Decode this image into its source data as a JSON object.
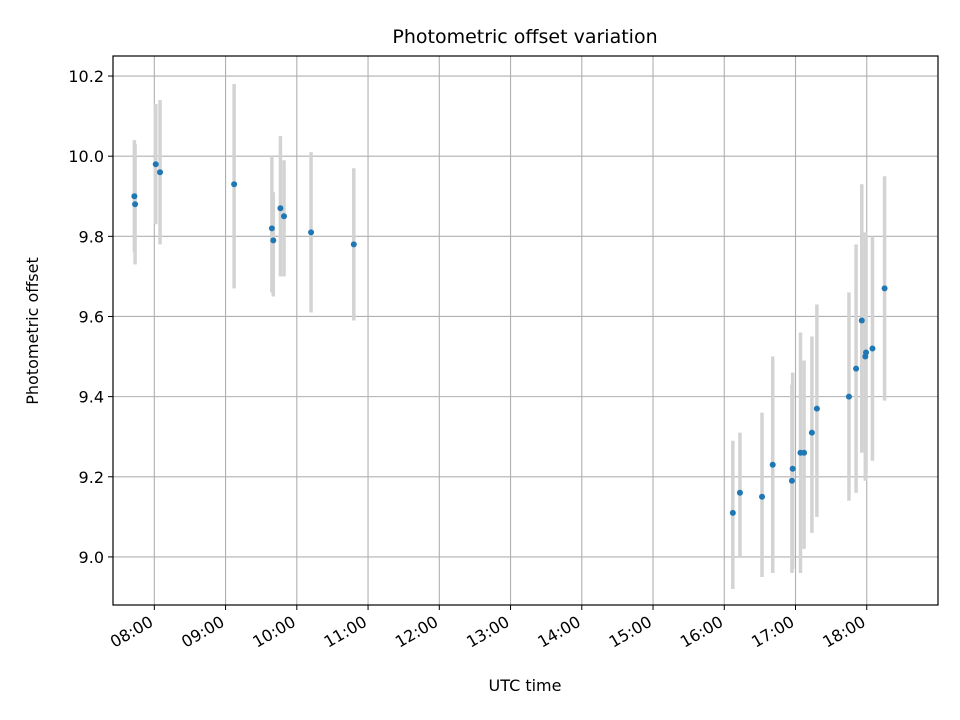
{
  "chart_data": {
    "type": "scatter",
    "title": "Photometric offset variation",
    "xlabel": "UTC time",
    "ylabel": "Photometric offset",
    "x_unit": "hours UTC",
    "xlim": [
      7.42,
      19.0
    ],
    "ylim": [
      8.88,
      10.25
    ],
    "x_ticks": [
      8,
      9,
      10,
      11,
      12,
      13,
      14,
      15,
      16,
      17,
      18
    ],
    "x_tick_labels": [
      "08:00",
      "09:00",
      "10:00",
      "11:00",
      "12:00",
      "13:00",
      "14:00",
      "15:00",
      "16:00",
      "17:00",
      "18:00"
    ],
    "y_ticks": [
      9.0,
      9.2,
      9.4,
      9.6,
      9.8,
      10.0,
      10.2
    ],
    "y_tick_labels": [
      "9.0",
      "9.2",
      "9.4",
      "9.6",
      "9.8",
      "10.0",
      "10.2"
    ],
    "grid": true,
    "marker_color": "#1f77b4",
    "errorbar_color": "#d3d3d3",
    "series": [
      {
        "points": [
          {
            "x": 7.72,
            "y": 9.9,
            "lo": 9.76,
            "hi": 10.04
          },
          {
            "x": 7.73,
            "y": 9.88,
            "lo": 9.73,
            "hi": 10.03
          },
          {
            "x": 8.02,
            "y": 9.98,
            "lo": 9.83,
            "hi": 10.13
          },
          {
            "x": 8.08,
            "y": 9.96,
            "lo": 9.78,
            "hi": 10.14
          },
          {
            "x": 9.12,
            "y": 9.93,
            "lo": 9.67,
            "hi": 10.18
          },
          {
            "x": 9.65,
            "y": 9.82,
            "lo": 9.66,
            "hi": 10.0
          },
          {
            "x": 9.67,
            "y": 9.79,
            "lo": 9.65,
            "hi": 9.91
          },
          {
            "x": 9.77,
            "y": 9.87,
            "lo": 9.7,
            "hi": 10.05
          },
          {
            "x": 9.82,
            "y": 9.85,
            "lo": 9.7,
            "hi": 9.99
          },
          {
            "x": 10.2,
            "y": 9.81,
            "lo": 9.61,
            "hi": 10.01
          },
          {
            "x": 10.8,
            "y": 9.78,
            "lo": 9.59,
            "hi": 9.97
          },
          {
            "x": 16.12,
            "y": 9.11,
            "lo": 8.92,
            "hi": 9.29
          },
          {
            "x": 16.22,
            "y": 9.16,
            "lo": 9.0,
            "hi": 9.31
          },
          {
            "x": 16.53,
            "y": 9.15,
            "lo": 8.95,
            "hi": 9.36
          },
          {
            "x": 16.68,
            "y": 9.23,
            "lo": 8.96,
            "hi": 9.5
          },
          {
            "x": 16.95,
            "y": 9.19,
            "lo": 8.96,
            "hi": 9.43
          },
          {
            "x": 16.96,
            "y": 9.22,
            "lo": 8.97,
            "hi": 9.46
          },
          {
            "x": 17.07,
            "y": 9.26,
            "lo": 8.96,
            "hi": 9.56
          },
          {
            "x": 17.12,
            "y": 9.26,
            "lo": 9.02,
            "hi": 9.49
          },
          {
            "x": 17.23,
            "y": 9.31,
            "lo": 9.06,
            "hi": 9.55
          },
          {
            "x": 17.3,
            "y": 9.37,
            "lo": 9.1,
            "hi": 9.63
          },
          {
            "x": 17.75,
            "y": 9.4,
            "lo": 9.14,
            "hi": 9.66
          },
          {
            "x": 17.85,
            "y": 9.47,
            "lo": 9.16,
            "hi": 9.78
          },
          {
            "x": 17.93,
            "y": 9.59,
            "lo": 9.26,
            "hi": 9.93
          },
          {
            "x": 17.98,
            "y": 9.5,
            "lo": 9.19,
            "hi": 9.81
          },
          {
            "x": 17.99,
            "y": 9.51,
            "lo": 9.21,
            "hi": 9.8
          },
          {
            "x": 18.08,
            "y": 9.52,
            "lo": 9.24,
            "hi": 9.8
          },
          {
            "x": 18.25,
            "y": 9.67,
            "lo": 9.39,
            "hi": 9.95
          }
        ]
      }
    ]
  }
}
